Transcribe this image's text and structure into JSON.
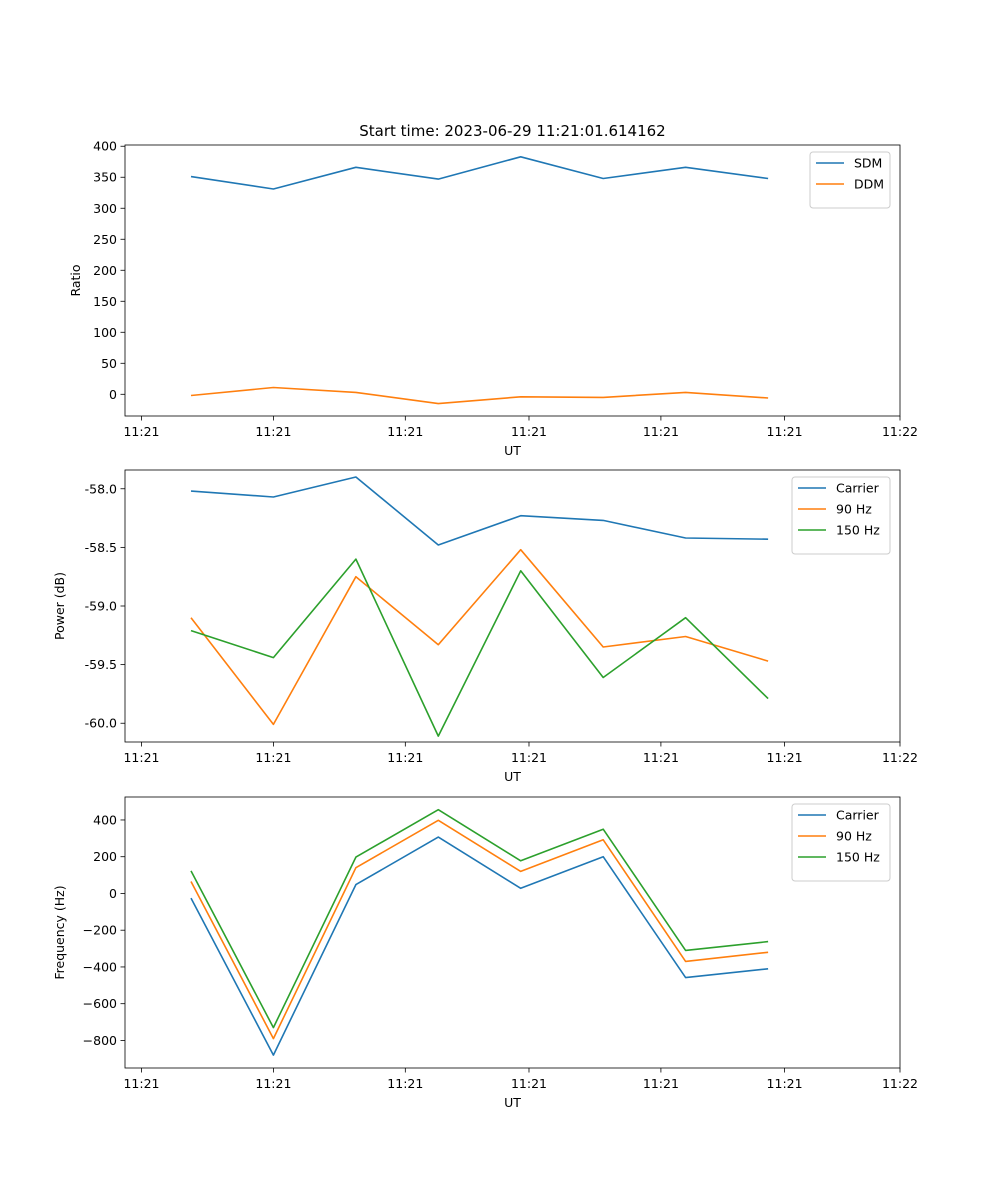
{
  "figure": {
    "title": "Start time: 2023-06-29 11:21:01.614162"
  },
  "colors": {
    "blue": "#1f77b4",
    "orange": "#ff7f0e",
    "green": "#2ca02c"
  },
  "chart_data": [
    {
      "type": "line",
      "title": "Start time: 2023-06-29 11:21:01.614162",
      "xlabel": "UT",
      "ylabel": "Ratio",
      "x": [
        1,
        2,
        3,
        4,
        5,
        6,
        7,
        8
      ],
      "x_range": [
        0.2,
        9.6
      ],
      "x_ticks": [
        0.4,
        2.0,
        3.6,
        5.1,
        6.7,
        8.2,
        9.6
      ],
      "x_tick_labels": [
        "11:21",
        "11:21",
        "11:21",
        "11:21",
        "11:21",
        "11:21",
        "11:22"
      ],
      "ylim": [
        -35,
        402
      ],
      "y_ticks": [
        0,
        50,
        100,
        150,
        200,
        250,
        300,
        350,
        400
      ],
      "y_tick_labels": [
        "0",
        "50",
        "100",
        "150",
        "200",
        "250",
        "300",
        "350",
        "400"
      ],
      "grid": false,
      "legend": "upper right",
      "series": [
        {
          "name": "SDM",
          "color": "#1f77b4",
          "values": [
            351,
            331,
            366,
            347,
            383,
            348,
            366,
            348
          ]
        },
        {
          "name": "DDM",
          "color": "#ff7f0e",
          "values": [
            -2,
            11,
            3,
            -15,
            -4,
            -5,
            3,
            -6
          ]
        }
      ]
    },
    {
      "type": "line",
      "xlabel": "UT",
      "ylabel": "Power (dB)",
      "x": [
        1,
        2,
        3,
        4,
        5,
        6,
        7,
        8
      ],
      "x_range": [
        0.2,
        9.6
      ],
      "x_ticks": [
        0.4,
        2.0,
        3.6,
        5.1,
        6.7,
        8.2,
        9.6
      ],
      "x_tick_labels": [
        "11:21",
        "11:21",
        "11:21",
        "11:21",
        "11:21",
        "11:21",
        "11:22"
      ],
      "ylim": [
        -60.16,
        -57.84
      ],
      "y_ticks": [
        -60.0,
        -59.5,
        -59.0,
        -58.5,
        -58.0
      ],
      "y_tick_labels": [
        "-60.0",
        "-59.5",
        "-59.0",
        "-58.5",
        "-58.0"
      ],
      "grid": false,
      "legend": "upper right",
      "series": [
        {
          "name": "Carrier",
          "color": "#1f77b4",
          "values": [
            -58.02,
            -58.07,
            -57.9,
            -58.48,
            -58.23,
            -58.27,
            -58.42,
            -58.43
          ]
        },
        {
          "name": "90 Hz",
          "color": "#ff7f0e",
          "values": [
            -59.1,
            -60.01,
            -58.75,
            -59.33,
            -58.52,
            -59.35,
            -59.26,
            -59.47
          ]
        },
        {
          "name": "150 Hz",
          "color": "#2ca02c",
          "values": [
            -59.21,
            -59.44,
            -58.6,
            -60.11,
            -58.7,
            -59.61,
            -59.1,
            -59.79
          ]
        }
      ]
    },
    {
      "type": "line",
      "xlabel": "UT",
      "ylabel": "Frequency (Hz)",
      "x": [
        1,
        2,
        3,
        4,
        5,
        6,
        7,
        8
      ],
      "x_range": [
        0.2,
        9.6
      ],
      "x_ticks": [
        0.4,
        2.0,
        3.6,
        5.1,
        6.7,
        8.2,
        9.6
      ],
      "x_tick_labels": [
        "11:21",
        "11:21",
        "11:21",
        "11:21",
        "11:21",
        "11:21",
        "11:22"
      ],
      "ylim": [
        -950,
        525
      ],
      "y_ticks": [
        -800,
        -600,
        -400,
        -200,
        0,
        200,
        400
      ],
      "y_tick_labels": [
        "−800",
        "−600",
        "−400",
        "−200",
        "0",
        "200",
        "400"
      ],
      "grid": false,
      "legend": "upper right",
      "series": [
        {
          "name": "Carrier",
          "color": "#1f77b4",
          "values": [
            -25,
            -880,
            48,
            307,
            28,
            200,
            -458,
            -410
          ]
        },
        {
          "name": "90 Hz",
          "color": "#ff7f0e",
          "values": [
            65,
            -790,
            140,
            398,
            120,
            292,
            -370,
            -320
          ]
        },
        {
          "name": "150 Hz",
          "color": "#2ca02c",
          "values": [
            123,
            -730,
            198,
            456,
            178,
            350,
            -310,
            -262
          ]
        }
      ]
    }
  ]
}
